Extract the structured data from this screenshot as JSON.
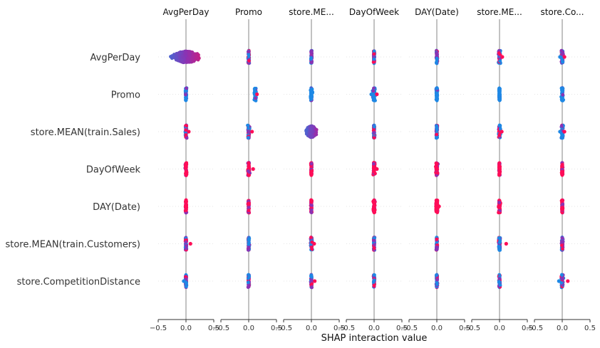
{
  "chart_data": {
    "type": "scatter",
    "subtype": "shap-interaction-summary-beeswarm",
    "xlabel": "SHAP interaction value",
    "xlim": [
      -0.5,
      0.5
    ],
    "xticks": [
      -0.5,
      0.0,
      0.5
    ],
    "xtick_labels": [
      "−0.5",
      "0.0",
      "0.5"
    ],
    "features": [
      "AvgPerDay",
      "Promo",
      "store.MEAN(train.Sales)",
      "DayOfWeek",
      "DAY(Date)",
      "store.MEAN(train.Customers)",
      "store.CompetitionDistance"
    ],
    "column_titles": [
      "AvgPerDay",
      "Promo",
      "store.ME...",
      "DayOfWeek",
      "DAY(Date)",
      "store.ME...",
      "store.Co..."
    ],
    "colors": {
      "low": "#1e88e5",
      "high": "#ff0d57",
      "center_line": "#999999",
      "axis": "#333333",
      "grid": "#cccccc"
    },
    "cell_distributions": [
      [
        {
          "center": 0.0,
          "spread": 0.3,
          "min": -0.5,
          "max": 0.5,
          "skew": "low-left high-right"
        },
        {
          "center": 0.0,
          "spread": 0.02,
          "min": -0.02,
          "max": 0.03,
          "dominant": "mixed"
        },
        {
          "center": 0.0,
          "spread": 0.02,
          "min": -0.02,
          "max": 0.02,
          "dominant": "mixed"
        },
        {
          "center": 0.0,
          "spread": 0.02,
          "min": -0.02,
          "max": 0.02,
          "dominant": "mixed"
        },
        {
          "center": 0.0,
          "spread": 0.02,
          "min": -0.02,
          "max": 0.02,
          "dominant": "mixed"
        },
        {
          "center": 0.0,
          "spread": 0.03,
          "min": -0.03,
          "max": 0.05,
          "dominant": "mixed"
        },
        {
          "center": 0.0,
          "spread": 0.03,
          "min": -0.04,
          "max": 0.04,
          "dominant": "mixed"
        }
      ],
      [
        {
          "center": 0.0,
          "spread": 0.02,
          "min": -0.02,
          "max": 0.02,
          "dominant": "low"
        },
        {
          "center": 0.12,
          "spread": 0.03,
          "min": 0.1,
          "max": 0.15,
          "dominant": "low"
        },
        {
          "center": 0.0,
          "spread": 0.03,
          "min": -0.03,
          "max": 0.03,
          "dominant": "low"
        },
        {
          "center": 0.0,
          "spread": 0.04,
          "min": -0.05,
          "max": 0.05,
          "dominant": "low"
        },
        {
          "center": 0.0,
          "spread": 0.02,
          "min": -0.02,
          "max": 0.02,
          "dominant": "low"
        },
        {
          "center": 0.0,
          "spread": 0.02,
          "min": -0.02,
          "max": 0.02,
          "dominant": "low"
        },
        {
          "center": 0.0,
          "spread": 0.03,
          "min": -0.03,
          "max": 0.03,
          "dominant": "low"
        }
      ],
      [
        {
          "center": 0.0,
          "spread": 0.02,
          "min": -0.02,
          "max": 0.05,
          "dominant": "mixed"
        },
        {
          "center": 0.0,
          "spread": 0.03,
          "min": -0.03,
          "max": 0.06,
          "dominant": "mixed"
        },
        {
          "center": 0.0,
          "spread": 0.12,
          "min": -0.2,
          "max": 0.3,
          "skew": "low-left high-right"
        },
        {
          "center": 0.0,
          "spread": 0.02,
          "min": -0.02,
          "max": 0.02,
          "dominant": "mixed"
        },
        {
          "center": 0.0,
          "spread": 0.02,
          "min": -0.02,
          "max": 0.02,
          "dominant": "mixed"
        },
        {
          "center": 0.0,
          "spread": 0.03,
          "min": -0.03,
          "max": 0.04,
          "dominant": "mixed"
        },
        {
          "center": 0.0,
          "spread": 0.03,
          "min": -0.04,
          "max": 0.04,
          "dominant": "mixed"
        }
      ],
      [
        {
          "center": 0.0,
          "spread": 0.02,
          "min": -0.02,
          "max": 0.02,
          "dominant": "high"
        },
        {
          "center": 0.0,
          "spread": 0.03,
          "min": -0.03,
          "max": 0.08,
          "dominant": "high"
        },
        {
          "center": 0.0,
          "spread": 0.02,
          "min": -0.02,
          "max": 0.02,
          "dominant": "high"
        },
        {
          "center": 0.0,
          "spread": 0.03,
          "min": -0.03,
          "max": 0.05,
          "dominant": "high"
        },
        {
          "center": 0.0,
          "spread": 0.03,
          "min": -0.03,
          "max": 0.03,
          "dominant": "high"
        },
        {
          "center": 0.0,
          "spread": 0.02,
          "min": -0.03,
          "max": 0.02,
          "dominant": "high"
        },
        {
          "center": 0.0,
          "spread": 0.02,
          "min": -0.02,
          "max": 0.02,
          "dominant": "high"
        }
      ],
      [
        {
          "center": 0.0,
          "spread": 0.02,
          "min": -0.03,
          "max": 0.02,
          "dominant": "high"
        },
        {
          "center": 0.0,
          "spread": 0.02,
          "min": -0.02,
          "max": 0.02,
          "dominant": "high"
        },
        {
          "center": 0.0,
          "spread": 0.02,
          "min": -0.02,
          "max": 0.02,
          "dominant": "high"
        },
        {
          "center": 0.0,
          "spread": 0.03,
          "min": -0.03,
          "max": 0.03,
          "dominant": "high"
        },
        {
          "center": 0.0,
          "spread": 0.03,
          "min": -0.03,
          "max": 0.04,
          "dominant": "high"
        },
        {
          "center": 0.0,
          "spread": 0.03,
          "min": -0.03,
          "max": 0.03,
          "dominant": "high"
        },
        {
          "center": 0.0,
          "spread": 0.02,
          "min": -0.02,
          "max": 0.02,
          "dominant": "high"
        }
      ],
      [
        {
          "center": 0.0,
          "spread": 0.02,
          "min": -0.03,
          "max": 0.08,
          "dominant": "mixed"
        },
        {
          "center": 0.0,
          "spread": 0.02,
          "min": -0.03,
          "max": 0.03,
          "dominant": "mixed"
        },
        {
          "center": 0.0,
          "spread": 0.03,
          "min": -0.03,
          "max": 0.05,
          "dominant": "mixed"
        },
        {
          "center": 0.0,
          "spread": 0.02,
          "min": -0.02,
          "max": 0.03,
          "dominant": "mixed"
        },
        {
          "center": 0.0,
          "spread": 0.02,
          "min": -0.02,
          "max": 0.02,
          "dominant": "mixed"
        },
        {
          "center": 0.0,
          "spread": 0.03,
          "min": -0.03,
          "max": 0.12,
          "dominant": "mixed"
        },
        {
          "center": 0.0,
          "spread": 0.02,
          "min": -0.03,
          "max": 0.03,
          "dominant": "mixed"
        }
      ],
      [
        {
          "center": 0.0,
          "spread": 0.02,
          "min": -0.04,
          "max": 0.03,
          "dominant": "mixed"
        },
        {
          "center": 0.0,
          "spread": 0.02,
          "min": -0.03,
          "max": 0.03,
          "dominant": "mixed"
        },
        {
          "center": 0.0,
          "spread": 0.02,
          "min": -0.03,
          "max": 0.06,
          "dominant": "mixed"
        },
        {
          "center": 0.0,
          "spread": 0.02,
          "min": -0.02,
          "max": 0.02,
          "dominant": "mixed"
        },
        {
          "center": 0.0,
          "spread": 0.02,
          "min": -0.02,
          "max": 0.02,
          "dominant": "mixed"
        },
        {
          "center": 0.0,
          "spread": 0.02,
          "min": -0.03,
          "max": 0.03,
          "dominant": "mixed"
        },
        {
          "center": 0.0,
          "spread": 0.03,
          "min": -0.06,
          "max": 0.1,
          "dominant": "mixed"
        }
      ]
    ]
  }
}
